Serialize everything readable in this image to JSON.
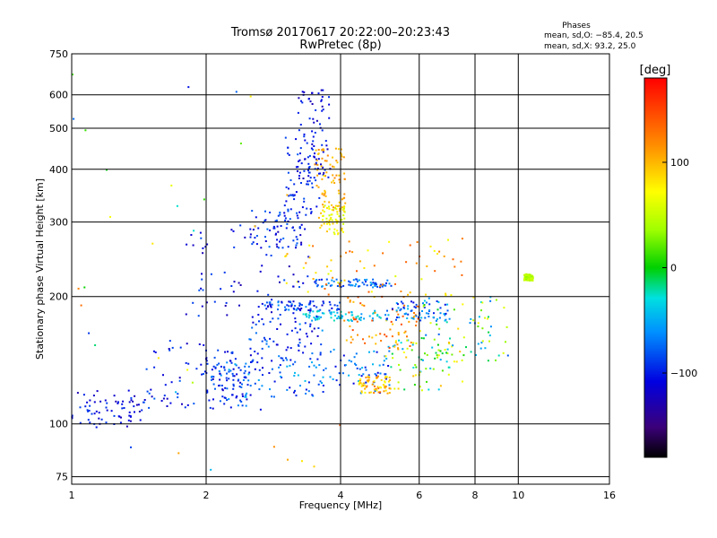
{
  "chart_data": {
    "type": "scatter",
    "title": "Tromsø 20170617 20:22:00–20:23:43",
    "subtitle": "RwPretec (8p)",
    "xlabel": "Frequency [MHz]",
    "ylabel": "Stationary phase Virtual Height [km]",
    "x_scale": "log",
    "y_scale": "log",
    "xlim": [
      1,
      16
    ],
    "ylim": [
      72,
      750
    ],
    "x_ticks": [
      1,
      2,
      4,
      6,
      8,
      10,
      16
    ],
    "x_tick_labels": [
      "1",
      "2",
      "4",
      "6",
      "8",
      "10",
      "16"
    ],
    "y_ticks": [
      75,
      100,
      200,
      300,
      400,
      500,
      600,
      750
    ],
    "y_tick_labels": [
      "75",
      "100",
      "200",
      "300",
      "400",
      "500",
      "600",
      "750"
    ],
    "grid": true,
    "stats": {
      "heading": "Phases",
      "line1": "mean, sd,O: −85.4, 20.5",
      "line2": "mean, sd,X:  93.2, 25.0"
    },
    "colorbar": {
      "label": "[deg]",
      "range": [
        -180,
        180
      ],
      "ticks": [
        100,
        0,
        -100
      ],
      "tick_labels": [
        "100",
        "0",
        "−100"
      ],
      "colormap": "rainbow"
    },
    "clusters": [
      {
        "f": [
          1.0,
          1.45
        ],
        "h": [
          98,
          120
        ],
        "phase": [
          -130,
          -85
        ]
      },
      {
        "f": [
          1.45,
          2.3
        ],
        "h": [
          108,
          160
        ],
        "phase": [
          -125,
          -75
        ]
      },
      {
        "f": [
          2.0,
          2.5
        ],
        "h": [
          110,
          140
        ],
        "phase": [
          -120,
          -60
        ]
      },
      {
        "f": [
          2.2,
          3.6
        ],
        "h": [
          115,
          145
        ],
        "phase": [
          -115,
          -40
        ]
      },
      {
        "f": [
          3.5,
          5.2
        ],
        "h": [
          118,
          150
        ],
        "phase": [
          -110,
          -40
        ]
      },
      {
        "f": [
          4.4,
          5.2
        ],
        "h": [
          118,
          130
        ],
        "phase": [
          70,
          130
        ]
      },
      {
        "f": [
          5.0,
          7.5
        ],
        "h": [
          120,
          160
        ],
        "phase": [
          -60,
          100
        ]
      },
      {
        "f": [
          1.8,
          3.4
        ],
        "h": [
          180,
          300
        ],
        "phase": [
          -130,
          -80
        ]
      },
      {
        "f": [
          2.5,
          3.3
        ],
        "h": [
          260,
          320
        ],
        "phase": [
          -120,
          -70
        ]
      },
      {
        "f": [
          3.0,
          3.6
        ],
        "h": [
          310,
          480
        ],
        "phase": [
          -110,
          -80
        ]
      },
      {
        "f": [
          3.2,
          3.8
        ],
        "h": [
          380,
          620
        ],
        "phase": [
          -130,
          -90
        ]
      },
      {
        "f": [
          3.5,
          4.1
        ],
        "h": [
          320,
          450
        ],
        "phase": [
          90,
          120
        ]
      },
      {
        "f": [
          3.6,
          4.1
        ],
        "h": [
          280,
          330
        ],
        "phase": [
          50,
          100
        ]
      },
      {
        "f": [
          2.6,
          4.0
        ],
        "h": [
          185,
          195
        ],
        "phase": [
          -120,
          -60
        ]
      },
      {
        "f": [
          3.5,
          5.2
        ],
        "h": [
          210,
          220
        ],
        "phase": [
          -100,
          -50
        ]
      },
      {
        "f": [
          3.3,
          5.0
        ],
        "h": [
          175,
          185
        ],
        "phase": [
          -60,
          -20
        ]
      },
      {
        "f": [
          4.0,
          6.0
        ],
        "h": [
          150,
          200
        ],
        "phase": [
          90,
          150
        ]
      },
      {
        "f": [
          5.0,
          7.0
        ],
        "h": [
          175,
          195
        ],
        "phase": [
          -110,
          -40
        ]
      },
      {
        "f": [
          6.0,
          9.5
        ],
        "h": [
          140,
          200
        ],
        "phase": [
          -80,
          90
        ]
      },
      {
        "f": [
          3.0,
          7.5
        ],
        "h": [
          200,
          280
        ],
        "phase": [
          60,
          140
        ]
      },
      {
        "f": [
          2.5,
          3.6
        ],
        "h": [
          140,
          180
        ],
        "phase": [
          -120,
          -60
        ]
      },
      {
        "f": [
          10.3,
          10.8
        ],
        "h": [
          218,
          226
        ],
        "phase": [
          30,
          60
        ]
      },
      {
        "f": [
          1.0,
          4.0
        ],
        "h": [
          72,
          750
        ],
        "phase": [
          -120,
          140
        ]
      }
    ]
  }
}
